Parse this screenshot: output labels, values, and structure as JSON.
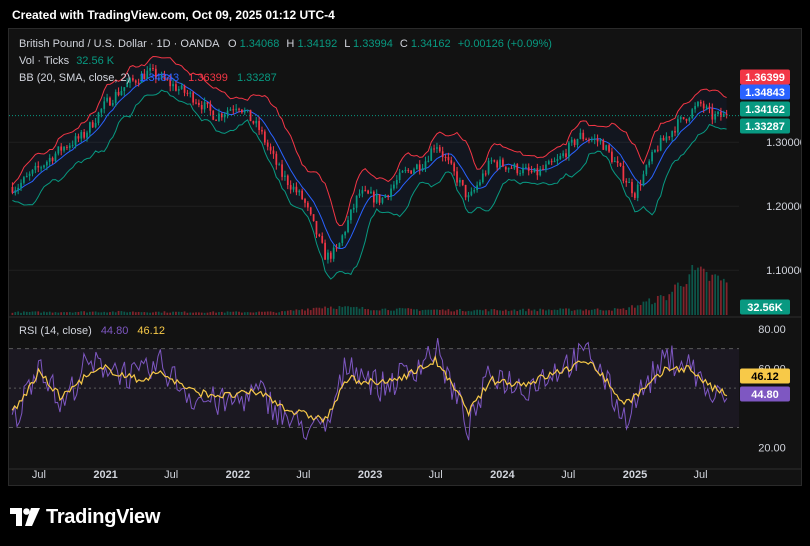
{
  "header": {
    "created_text": "Created with TradingView.com, Oct 09, 2025 01:12 UTC-4"
  },
  "legend": {
    "symbol": "British Pound / U.S. Dollar · 1D · OANDA",
    "o_label": "O",
    "o_value": "1.34068",
    "h_label": "H",
    "h_value": "1.34192",
    "l_label": "L",
    "l_value": "1.33994",
    "c_label": "C",
    "c_value": "1.34162",
    "change": "+0.00126 (+0.09%)",
    "vol_label": "Vol · Ticks",
    "vol_value": "32.56 K",
    "bb_label": "BB (20, SMA, close, 2)",
    "bb_basis": "1.34843",
    "bb_upper": "1.36399",
    "bb_lower": "1.33287",
    "rsi_label": "RSI (14, close)",
    "rsi_value": "44.80",
    "rsi_ma_value": "46.12"
  },
  "price_axis": {
    "ticks": [
      "1.30000",
      "1.20000",
      "1.10000"
    ]
  },
  "price_badges": [
    {
      "label": "1.36399",
      "color": "#f23645"
    },
    {
      "label": "1.34843",
      "color": "#2962ff"
    },
    {
      "label": "1.34162",
      "color": "#089981"
    },
    {
      "label": "1.33287",
      "color": "#089981"
    }
  ],
  "volume_badge": {
    "label": "32.56K",
    "color": "#089981"
  },
  "rsi_axis": {
    "ticks": [
      "80.00",
      "60.00",
      "20.00"
    ]
  },
  "rsi_badges": [
    {
      "label": "46.12",
      "color": "#f7c948"
    },
    {
      "label": "44.80",
      "color": "#7e57c2"
    }
  ],
  "time_axis": [
    "Jul",
    "2021",
    "Jul",
    "2022",
    "Jul",
    "2023",
    "Jul",
    "2024",
    "Jul",
    "2025",
    "Jul"
  ],
  "colors": {
    "bull": "#089981",
    "bear": "#f23645",
    "basis": "#2962ff",
    "rsi": "#7e57c2",
    "rsi_ma": "#f7c948"
  },
  "logo": {
    "text": "TradingView"
  },
  "chart_data": [
    {
      "type": "line",
      "title": "British Pound / U.S. Dollar · 1D · OANDA",
      "x": [
        "2020-05",
        "2020-07",
        "2020-09",
        "2020-11",
        "2021-01",
        "2021-03",
        "2021-05",
        "2021-07",
        "2021-09",
        "2021-11",
        "2022-01",
        "2022-03",
        "2022-05",
        "2022-07",
        "2022-09",
        "2022-10",
        "2022-12",
        "2023-02",
        "2023-04",
        "2023-06",
        "2023-07",
        "2023-09",
        "2023-10",
        "2023-12",
        "2024-02",
        "2024-04",
        "2024-06",
        "2024-08",
        "2024-10",
        "2025-01",
        "2025-03",
        "2025-05",
        "2025-07",
        "2025-08",
        "2025-10"
      ],
      "series": [
        {
          "name": "C",
          "values": [
            1.23,
            1.26,
            1.29,
            1.31,
            1.36,
            1.39,
            1.41,
            1.39,
            1.37,
            1.34,
            1.36,
            1.32,
            1.25,
            1.21,
            1.12,
            1.13,
            1.22,
            1.21,
            1.25,
            1.27,
            1.3,
            1.24,
            1.21,
            1.27,
            1.26,
            1.25,
            1.27,
            1.31,
            1.3,
            1.22,
            1.29,
            1.33,
            1.36,
            1.34,
            1.3416
          ]
        }
      ],
      "bollinger": {
        "basis_last": 1.34843,
        "upper_last": 1.36399,
        "lower_last": 1.33287
      },
      "ylim": [
        1.03,
        1.43
      ]
    },
    {
      "type": "bar",
      "title": "Vol · Ticks",
      "last_value": 32560,
      "x": [
        "2020-05",
        "2021-01",
        "2021-09",
        "2022-05",
        "2022-09",
        "2023-01",
        "2023-09",
        "2024-05",
        "2024-12",
        "2025-04",
        "2025-06",
        "2025-10"
      ],
      "values": [
        3000,
        3500,
        3000,
        3200,
        9000,
        6500,
        5000,
        5500,
        6000,
        20000,
        45000,
        32560
      ]
    },
    {
      "type": "line",
      "title": "RSI (14, close)",
      "x": [
        "2020-05",
        "2020-07",
        "2020-09",
        "2020-11",
        "2021-01",
        "2021-04",
        "2021-06",
        "2021-09",
        "2021-12",
        "2022-03",
        "2022-06",
        "2022-09",
        "2022-11",
        "2023-02",
        "2023-05",
        "2023-07",
        "2023-10",
        "2023-12",
        "2024-03",
        "2024-06",
        "2024-09",
        "2024-12",
        "2025-02",
        "2025-04",
        "2025-06",
        "2025-08",
        "2025-10"
      ],
      "series": [
        {
          "name": "RSI",
          "values": [
            35,
            65,
            40,
            60,
            62,
            55,
            62,
            45,
            42,
            48,
            32,
            28,
            64,
            50,
            60,
            70,
            30,
            58,
            50,
            60,
            68,
            35,
            52,
            65,
            62,
            45,
            44.8
          ]
        },
        {
          "name": "MA",
          "values": [
            40,
            58,
            45,
            55,
            60,
            54,
            58,
            48,
            46,
            48,
            38,
            34,
            55,
            52,
            58,
            64,
            38,
            54,
            52,
            58,
            64,
            42,
            50,
            60,
            60,
            50,
            46.12
          ]
        }
      ],
      "levels": [
        70,
        50,
        30
      ],
      "ylim": [
        10,
        85
      ]
    }
  ]
}
